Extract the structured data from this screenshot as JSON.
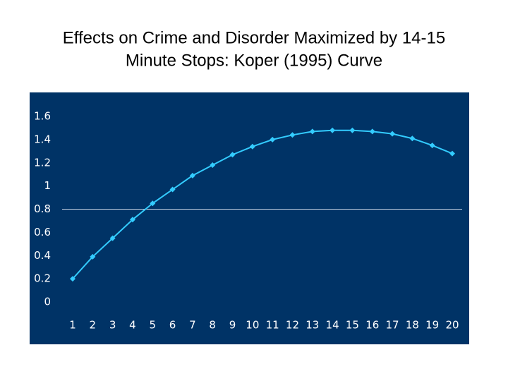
{
  "chart_data": {
    "type": "line",
    "title": [
      "Effects on Crime and Disorder Maximized by 14-15",
      "Minute Stops: Koper (1995) Curve"
    ],
    "categories": [
      "1",
      "2",
      "3",
      "4",
      "5",
      "6",
      "7",
      "8",
      "9",
      "10",
      "11",
      "12",
      "13",
      "14",
      "15",
      "16",
      "17",
      "18",
      "19",
      "20"
    ],
    "series": [
      {
        "color": "#33ccff",
        "values": [
          0.2,
          0.39,
          0.55,
          0.71,
          0.85,
          0.97,
          1.09,
          1.18,
          1.27,
          1.34,
          1.4,
          1.44,
          1.47,
          1.48,
          1.48,
          1.47,
          1.45,
          1.41,
          1.35,
          1.28
        ]
      }
    ],
    "ylim": [
      0,
      1.6
    ],
    "yticks": [
      0,
      0.2,
      0.4,
      0.6,
      0.8,
      1,
      1.2,
      1.4,
      1.6
    ],
    "reference_line": 0.8,
    "background": "#003366"
  }
}
